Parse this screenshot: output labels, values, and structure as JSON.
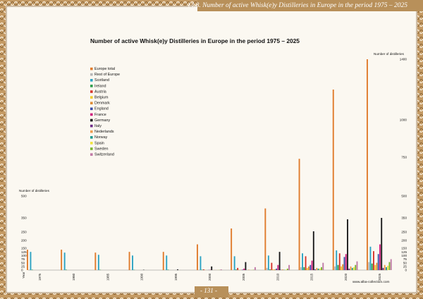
{
  "page": {
    "header": "14.8. Number of active Whisk(e)y Distilleries in Europe in the period 1975 – 2025",
    "page_number": "- 131 -",
    "website": "www.alba-collection.com"
  },
  "colors": {
    "frame": "#b8905a",
    "frame_dark": "#8a6434",
    "background": "#fbf8f1"
  },
  "chart_data": {
    "type": "bar",
    "title": "Number of active Whisk(e)y Distilleries in Europe in the period 1975 – 2025",
    "ylabel_left": "Number of distilleries",
    "ylabel_right": "Number of distilleries",
    "xlabel": "Year",
    "ylim": [
      0,
      1400
    ],
    "y_scale": "piecewise",
    "y_ticks": [
      0,
      25,
      50,
      75,
      100,
      125,
      150,
      200,
      250,
      350,
      500,
      750,
      1000,
      1400
    ],
    "left_ticks": [
      0,
      25,
      50,
      75,
      100,
      125,
      150,
      200,
      250,
      350,
      500
    ],
    "right_ticks": [
      0,
      25,
      50,
      75,
      100,
      125,
      150,
      200,
      250,
      350,
      500,
      750,
      1000,
      1400
    ],
    "legend_position": "top-left",
    "categories": [
      "1975",
      "1980",
      "1985",
      "1990",
      "1995",
      "2000",
      "2005",
      "2010",
      "2015",
      "2020",
      "2025"
    ],
    "series": [
      {
        "name": "Europe total",
        "color": "#e07b2c",
        "values": [
          140,
          140,
          120,
          125,
          125,
          175,
          275,
          415,
          740,
          1200,
          1400
        ]
      },
      {
        "name": "Rest of Europe",
        "color": "#b8b8b8",
        "values": [
          0,
          0,
          0,
          0,
          0,
          0,
          0,
          15,
          20,
          25,
          55
        ]
      },
      {
        "name": "Scotland",
        "color": "#2ba3c4",
        "values": [
          125,
          120,
          105,
          100,
          100,
          95,
          95,
          100,
          115,
          135,
          160
        ]
      },
      {
        "name": "Ireland",
        "color": "#2e9d4a",
        "values": [
          3,
          3,
          2,
          2,
          3,
          3,
          4,
          5,
          20,
          35,
          45
        ]
      },
      {
        "name": "Austria",
        "color": "#d7362c",
        "values": [
          0,
          0,
          0,
          0,
          0,
          5,
          15,
          50,
          95,
          115,
          130
        ]
      },
      {
        "name": "Belgium",
        "color": "#f2cc2e",
        "values": [
          0,
          0,
          0,
          0,
          0,
          1,
          2,
          5,
          15,
          25,
          35
        ]
      },
      {
        "name": "Denmark",
        "color": "#df8c35",
        "values": [
          0,
          0,
          0,
          0,
          0,
          0,
          1,
          5,
          25,
          40,
          50
        ]
      },
      {
        "name": "England",
        "color": "#3c4ea8",
        "values": [
          0,
          0,
          0,
          0,
          0,
          1,
          3,
          10,
          35,
          90,
          110
        ]
      },
      {
        "name": "France",
        "color": "#cf1f7e",
        "values": [
          0,
          0,
          0,
          0,
          0,
          2,
          10,
          35,
          65,
          110,
          175
        ]
      },
      {
        "name": "Germany",
        "color": "#1b1b1b",
        "values": [
          0,
          0,
          0,
          2,
          5,
          25,
          55,
          125,
          255,
          340,
          350
        ]
      },
      {
        "name": "Italy",
        "color": "#6e2b88",
        "values": [
          0,
          0,
          0,
          0,
          0,
          0,
          0,
          2,
          5,
          10,
          15
        ]
      },
      {
        "name": "Nederlands",
        "color": "#ee9c4e",
        "values": [
          0,
          0,
          0,
          0,
          0,
          1,
          3,
          5,
          15,
          25,
          35
        ]
      },
      {
        "name": "Norway",
        "color": "#1f9a8e",
        "values": [
          0,
          0,
          0,
          0,
          0,
          0,
          0,
          2,
          10,
          15,
          20
        ]
      },
      {
        "name": "Spain",
        "color": "#f1e43c",
        "values": [
          0,
          0,
          0,
          0,
          0,
          1,
          1,
          3,
          10,
          20,
          30
        ]
      },
      {
        "name": "Sweden",
        "color": "#79b52f",
        "values": [
          0,
          0,
          0,
          0,
          0,
          1,
          2,
          10,
          20,
          35,
          55
        ]
      },
      {
        "name": "Switzerland",
        "color": "#c07aa6",
        "values": [
          0,
          0,
          0,
          0,
          0,
          5,
          20,
          35,
          50,
          60,
          75
        ]
      }
    ]
  }
}
